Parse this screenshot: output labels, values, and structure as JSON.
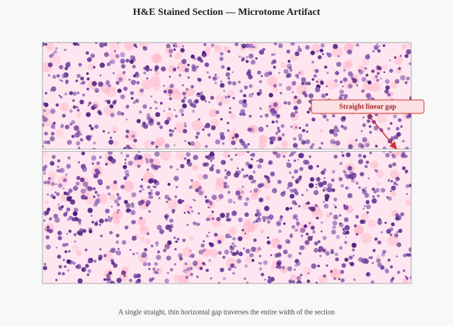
{
  "header": {
    "title": "H&E Stained Section — Microtome Artifact"
  },
  "annotation": {
    "label": "Straight linear gap"
  },
  "footer": {
    "caption": "A single straight, thin horizontal gap traverses the entire width of the section"
  }
}
